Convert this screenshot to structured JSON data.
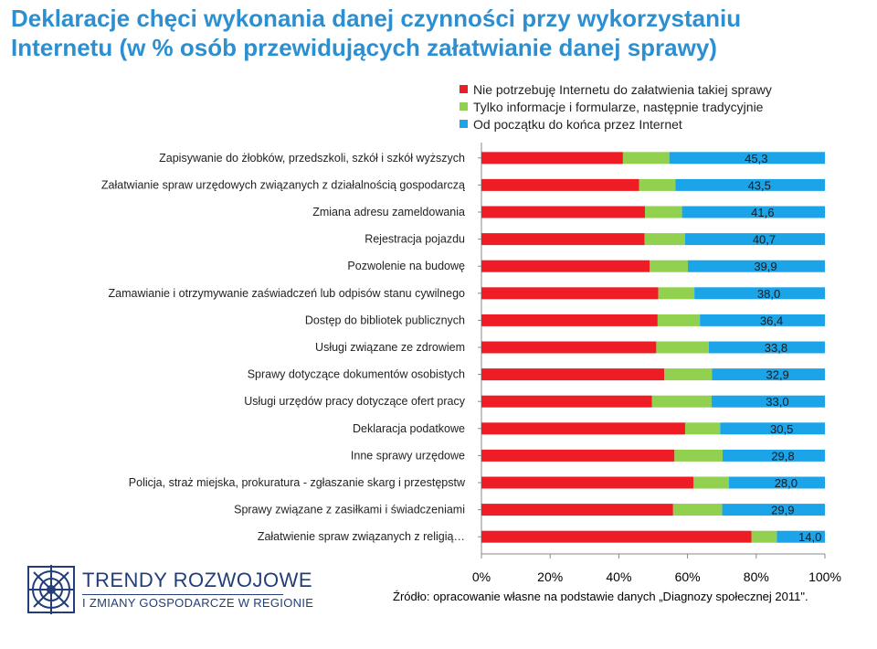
{
  "title_line1": "Deklaracje chęci wykonania danej czynności przy wykorzystaniu",
  "title_line2": "Internetu (w % osób przewidujących załatwianie danej sprawy)",
  "source": "Źródło: opracowanie własne na podstawie danych „Diagnozy społecznej 2011\".",
  "logo": {
    "line1": "TRENDY ROZWOJOWE",
    "line2": "I ZMIANY GOSPODARCZE W REGIONIE"
  },
  "chart_data": {
    "type": "bar",
    "orientation": "horizontal",
    "stacked": true,
    "percent_stacked": true,
    "xlim": [
      0,
      100
    ],
    "x_ticks": [
      "0%",
      "20%",
      "40%",
      "60%",
      "80%",
      "100%"
    ],
    "legend_placement": "top-right",
    "categories": [
      "Zapisywanie do żłobków, przedszkoli, szkół i szkół wyższych",
      "Załatwianie spraw urzędowych związanych z działalnością gospodarczą",
      "Zmiana adresu zameldowania",
      "Rejestracja pojazdu",
      "Pozwolenie na budowę",
      "Zamawianie i otrzymywanie zaświadczeń lub odpisów stanu cywilnego",
      "Dostęp do bibliotek publicznych",
      "Usługi związane ze zdrowiem",
      "Sprawy dotyczące dokumentów osobistych",
      "Usługi urzędów pracy dotyczące ofert pracy",
      "Deklaracja podatkowe",
      "Inne sprawy urzędowe",
      "Policja, straż miejska, prokuratura - zgłaszanie skarg i przestępstw",
      "Sprawy związane z zasiłkami i świadczeniami",
      "Załatwienie spraw związanych z religią…"
    ],
    "series": [
      {
        "name": "Nie potrzebuję Internetu do załatwienia takiej sprawy",
        "color": "#ee1c25",
        "values": [
          41.2,
          45.9,
          47.6,
          47.5,
          49.0,
          51.5,
          51.3,
          50.9,
          53.2,
          49.6,
          59.3,
          56.2,
          61.7,
          55.8,
          78.6
        ]
      },
      {
        "name": "Tylko informacje i formularze, następnie tradycyjnie",
        "color": "#92d050",
        "values": [
          13.5,
          10.6,
          10.8,
          11.8,
          11.1,
          10.5,
          12.3,
          15.3,
          13.9,
          17.4,
          10.2,
          14.0,
          10.3,
          14.3,
          7.4
        ]
      },
      {
        "name": "Od początku do końca przez Internet",
        "color": "#1ca4e8",
        "values": [
          45.3,
          43.5,
          41.6,
          40.7,
          39.9,
          38.0,
          36.4,
          33.8,
          32.9,
          33.0,
          30.5,
          29.8,
          28.0,
          29.9,
          14.0
        ]
      }
    ],
    "data_labels": [
      "45,3",
      "43,5",
      "41,6",
      "40,7",
      "39,9",
      "38,0",
      "36,4",
      "33,8",
      "32,9",
      "33,0",
      "30,5",
      "29,8",
      "28,0",
      "29,9",
      "14,0"
    ]
  }
}
